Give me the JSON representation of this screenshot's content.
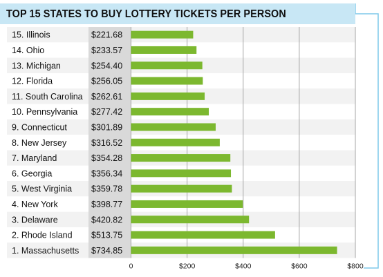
{
  "header": {
    "title": "TOP 15 STATES TO BUY LOTTERY TICKETS PER PERSON"
  },
  "colors": {
    "bar": "#7cb82f",
    "value_col": "#d9d9d9",
    "row_stripe": "#f2f2f2",
    "grid": "#a6a6a6",
    "title_bg": "#c8e7f5",
    "frame": "#7fc8ea"
  },
  "chart_data": {
    "type": "bar",
    "orientation": "horizontal",
    "title": "TOP 15 STATES TO BUY LOTTERY TICKETS PER PERSON",
    "categories": [
      "15. Illinois",
      "14. Ohio",
      "13. Michigan",
      "12. Florida",
      "11. South Carolina",
      "10. Pennsylvania",
      "9. Connecticut",
      "8. New Jersey",
      "7. Maryland",
      "6. Georgia",
      "5. West Virginia",
      "4. New York",
      "3. Delaware",
      "2. Rhode Island",
      "1. Massachusetts"
    ],
    "values": [
      221.68,
      233.57,
      254.4,
      256.05,
      262.61,
      277.42,
      301.89,
      316.52,
      354.28,
      356.34,
      359.78,
      398.77,
      420.82,
      513.75,
      734.85
    ],
    "value_labels": [
      "$221.68",
      "$233.57",
      "$254.40",
      "$256.05",
      "$262.61",
      "$277.42",
      "$301.89",
      "$316.52",
      "$354.28",
      "$356.34",
      "$359.78",
      "$398.77",
      "$420.82",
      "$513.75",
      "$734.85"
    ],
    "xlim": [
      0,
      800
    ],
    "xticks": [
      0,
      200,
      400,
      600,
      800
    ],
    "xtick_labels": [
      "0",
      "$200",
      "$400",
      "$600",
      "$800"
    ],
    "grid": true,
    "legend": "none"
  }
}
